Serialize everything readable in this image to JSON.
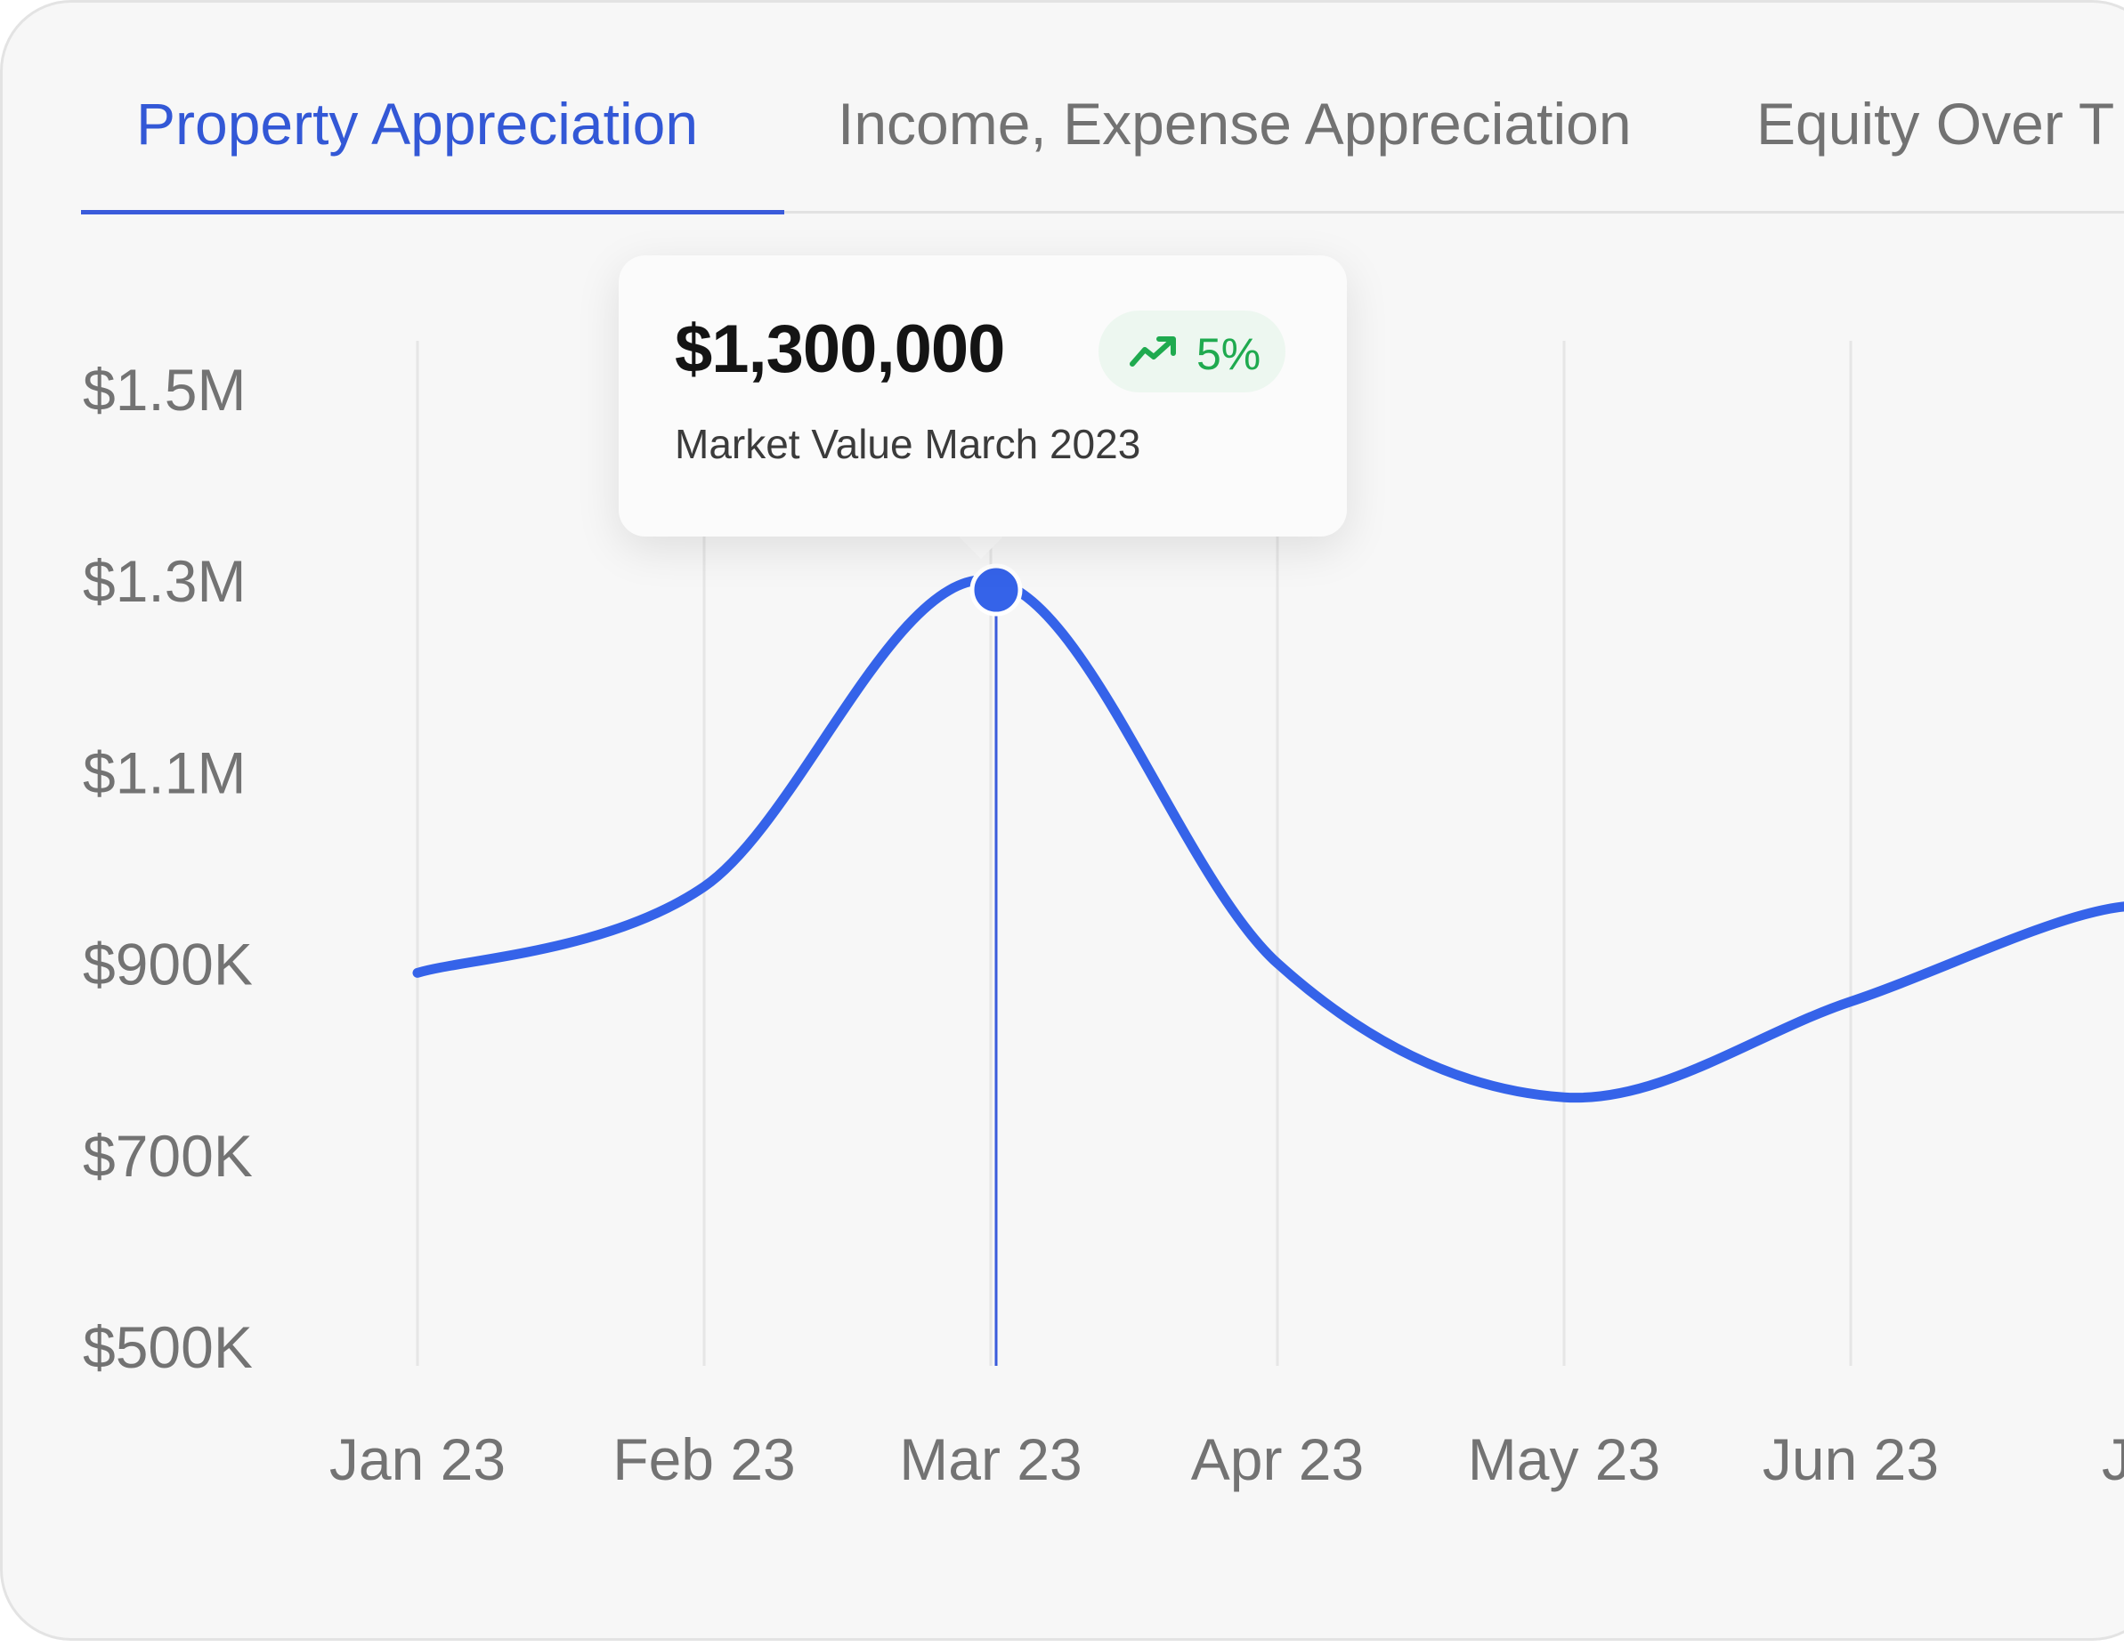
{
  "tabs": [
    {
      "label": "Property Appreciation"
    },
    {
      "label": "Income, Expense Appreciation"
    },
    {
      "label": "Equity Over T"
    }
  ],
  "tooltip": {
    "value": "$1,300,000",
    "change": "5%",
    "label": "Market Value March 2023"
  },
  "colors": {
    "accent": "#3a5bdb",
    "line": "#3563e9",
    "positive": "#1faa4f"
  },
  "chart_data": {
    "type": "line",
    "yticks": [
      "$1.5M",
      "$1.3M",
      "$1.1M",
      "$900K",
      "$700K",
      "$500K"
    ],
    "xticks": [
      "Jan 23",
      "Feb 23",
      "Mar 23",
      "Apr 23",
      "May 23",
      "Jun 23",
      "Jul"
    ],
    "ylim": [
      500000,
      1500000
    ],
    "grid": true,
    "series": [
      {
        "points": [
          {
            "x": "Jan 23",
            "y": 890000
          },
          {
            "x": "Feb 23",
            "y": 980000
          },
          {
            "x": "Mar 23",
            "y": 1300000
          },
          {
            "x": "Apr 23",
            "y": 900000
          },
          {
            "x": "May 23",
            "y": 760000
          },
          {
            "x": "Jun 23",
            "y": 860000
          },
          {
            "x": "Jul",
            "y": 960000
          }
        ]
      }
    ],
    "highlight": {
      "x": "Mar 23",
      "y": 1300000
    }
  }
}
